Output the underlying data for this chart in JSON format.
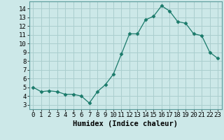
{
  "x": [
    0,
    1,
    2,
    3,
    4,
    5,
    6,
    7,
    8,
    9,
    10,
    11,
    12,
    13,
    14,
    15,
    16,
    17,
    18,
    19,
    20,
    21,
    22,
    23
  ],
  "y": [
    5.0,
    4.5,
    4.6,
    4.5,
    4.2,
    4.2,
    4.0,
    3.2,
    4.5,
    5.3,
    6.5,
    8.8,
    11.1,
    11.1,
    12.7,
    13.1,
    14.3,
    13.7,
    12.5,
    12.3,
    11.1,
    10.9,
    9.0,
    8.3
  ],
  "line_color": "#1a7a6a",
  "marker": "D",
  "marker_size": 2.5,
  "bg_color": "#cce8e8",
  "grid_color": "#aacece",
  "xlabel": "Humidex (Indice chaleur)",
  "xlim": [
    -0.5,
    23.5
  ],
  "ylim": [
    2.5,
    14.8
  ],
  "xticks": [
    0,
    1,
    2,
    3,
    4,
    5,
    6,
    7,
    8,
    9,
    10,
    11,
    12,
    13,
    14,
    15,
    16,
    17,
    18,
    19,
    20,
    21,
    22,
    23
  ],
  "yticks": [
    3,
    4,
    5,
    6,
    7,
    8,
    9,
    10,
    11,
    12,
    13,
    14
  ],
  "tick_fontsize": 6.5,
  "xlabel_fontsize": 7.5
}
